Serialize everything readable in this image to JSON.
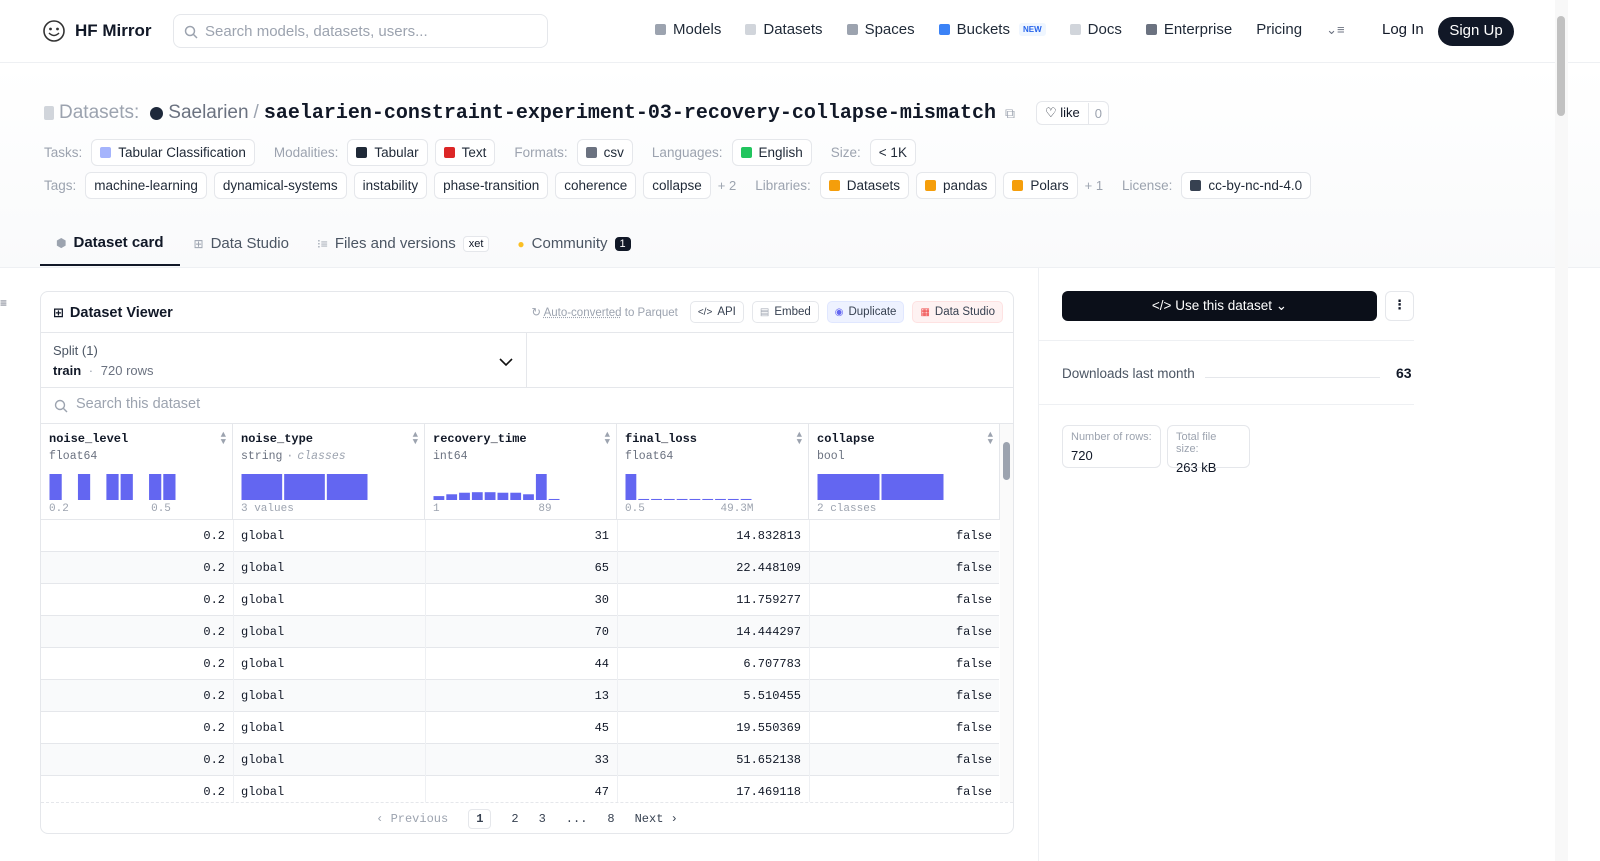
{
  "nav": {
    "brand": "HF Mirror",
    "search": "Search models, datasets, users...",
    "items": [
      "Models",
      "Datasets",
      "Spaces",
      "Buckets",
      "Docs",
      "Enterprise",
      "Pricing"
    ],
    "badge": "NEW",
    "login": "Log In",
    "signup": "Sign Up"
  },
  "header": {
    "kind": "Datasets:",
    "owner": "Saelarien",
    "sep": "/",
    "name": "saelarien-constraint-experiment-03-recovery-collapse-mismatch",
    "like": "like",
    "likes": 0,
    "tasks": {
      "label": "Tasks:",
      "items": [
        "Tabular Classification"
      ]
    },
    "modalities": {
      "label": "Modalities:",
      "items": [
        "Tabular",
        "Text"
      ]
    },
    "formats": {
      "label": "Formats:",
      "items": [
        "csv"
      ]
    },
    "languages": {
      "label": "Languages:",
      "items": [
        "English"
      ]
    },
    "size": {
      "label": "Size:",
      "items": [
        "< 1K"
      ]
    },
    "tags": {
      "label": "Tags:",
      "items": [
        "machine-learning",
        "dynamical-systems",
        "instability",
        "phase-transition",
        "coherence",
        "collapse"
      ],
      "more": "+ 2"
    },
    "libraries": {
      "label": "Libraries:",
      "items": [
        "Datasets",
        "pandas",
        "Polars"
      ],
      "more": "+ 1"
    },
    "license": {
      "label": "License:",
      "items": [
        "cc-by-nc-nd-4.0"
      ]
    }
  },
  "tabs": [
    {
      "label": "Dataset card"
    },
    {
      "label": "Data Studio"
    },
    {
      "label": "Files and versions",
      "badge": "xet"
    },
    {
      "label": "Community",
      "badge": 1
    }
  ],
  "viewer": {
    "title": "Dataset Viewer",
    "converted": "Auto-converted",
    "converted_suffix": "to Parquet",
    "actions": [
      "API",
      "Embed",
      "Duplicate",
      "Data Studio"
    ],
    "split_label": "Split (1)",
    "split": "train",
    "dot": "·",
    "rows_count": "720 rows",
    "search": "Search this dataset",
    "columns": [
      {
        "name": "noise_level",
        "dtype": "float64",
        "hist": [
          1,
          0,
          1,
          0,
          1,
          1,
          0,
          1,
          1
        ],
        "min": 0.2,
        "max": 0.5
      },
      {
        "name": "noise_type",
        "dtype": "string",
        "dtype_sep": "·",
        "extra": "classes",
        "hist": [
          1,
          1,
          1
        ],
        "summary": "3 values"
      },
      {
        "name": "recovery_time",
        "dtype": "int64",
        "hist": [
          0.15,
          0.22,
          0.28,
          0.3,
          0.3,
          0.28,
          0.28,
          0.22,
          1,
          0.04
        ],
        "min": 1,
        "max": 89
      },
      {
        "name": "final_loss",
        "dtype": "float64",
        "hist": [
          1,
          0.04,
          0.04,
          0.04,
          0.04,
          0.04,
          0.04,
          0.04,
          0.04,
          0.04
        ],
        "min": 0.5,
        "max": "49.3M"
      },
      {
        "name": "collapse",
        "dtype": "bool",
        "hist": [
          1,
          1
        ],
        "summary": "2 classes"
      }
    ],
    "rows": [
      [
        0.2,
        "global",
        31,
        14.832813,
        "false"
      ],
      [
        0.2,
        "global",
        65,
        22.448109,
        "false"
      ],
      [
        0.2,
        "global",
        30,
        11.759277,
        "false"
      ],
      [
        0.2,
        "global",
        70,
        14.444297,
        "false"
      ],
      [
        0.2,
        "global",
        44,
        6.707783,
        "false"
      ],
      [
        0.2,
        "global",
        13,
        5.510455,
        "false"
      ],
      [
        0.2,
        "global",
        45,
        19.550369,
        "false"
      ],
      [
        0.2,
        "global",
        33,
        51.652138,
        "false"
      ],
      [
        0.2,
        "global",
        47,
        17.469118,
        "false"
      ]
    ],
    "pagination": {
      "prev": "Previous",
      "pages": [
        "1",
        "2",
        "3",
        "...",
        "8"
      ],
      "next": "Next"
    }
  },
  "sidebar": {
    "use": "Use this dataset",
    "downloads_label": "Downloads last month",
    "downloads": 63,
    "stats": [
      {
        "label": "Number of rows:",
        "value": 720
      },
      {
        "label": "Total file size:",
        "value": "263 kB"
      }
    ]
  }
}
